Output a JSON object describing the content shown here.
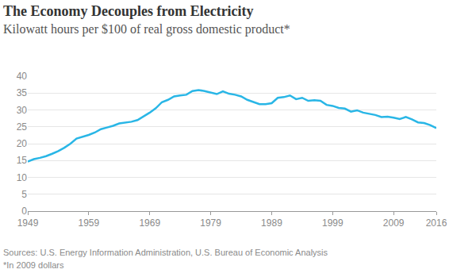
{
  "chart_data": {
    "type": "line",
    "title": "The Economy Decouples from Electricity",
    "subtitle": "Kilowatt hours per $100 of real gross domestic product*",
    "annotations": [
      "Sources: U.S. Energy Information Administration, U.S. Bureau of Economic Analysis",
      "*In 2009 dollars"
    ],
    "x": [
      1949,
      1950,
      1951,
      1952,
      1953,
      1954,
      1955,
      1956,
      1957,
      1958,
      1959,
      1960,
      1961,
      1962,
      1963,
      1964,
      1965,
      1966,
      1967,
      1968,
      1969,
      1970,
      1971,
      1972,
      1973,
      1974,
      1975,
      1976,
      1977,
      1978,
      1979,
      1980,
      1981,
      1982,
      1983,
      1984,
      1985,
      1986,
      1987,
      1988,
      1989,
      1990,
      1991,
      1992,
      1993,
      1994,
      1995,
      1996,
      1997,
      1998,
      1999,
      2000,
      2001,
      2002,
      2003,
      2004,
      2005,
      2006,
      2007,
      2008,
      2009,
      2010,
      2011,
      2012,
      2013,
      2014,
      2015,
      2016
    ],
    "values": [
      14.7,
      15.4,
      15.8,
      16.3,
      17.0,
      17.8,
      18.8,
      20.0,
      21.5,
      22.0,
      22.6,
      23.3,
      24.3,
      24.8,
      25.3,
      26.0,
      26.3,
      26.5,
      27.0,
      28.0,
      29.2,
      30.5,
      32.3,
      33.0,
      34.0,
      34.3,
      34.5,
      35.6,
      35.9,
      35.6,
      35.2,
      34.7,
      35.5,
      34.8,
      34.5,
      34.0,
      33.0,
      32.3,
      31.7,
      31.7,
      32.0,
      33.6,
      33.8,
      34.3,
      33.2,
      33.6,
      32.7,
      32.9,
      32.7,
      31.5,
      31.2,
      30.6,
      30.4,
      29.5,
      29.9,
      29.2,
      28.8,
      28.5,
      27.9,
      28.0,
      27.7,
      27.3,
      27.9,
      27.2,
      26.3,
      26.1,
      25.5,
      24.6
    ],
    "color": "#29b6e6",
    "xlim": [
      1949,
      2016
    ],
    "xticks": [
      1949,
      1959,
      1969,
      1979,
      1989,
      1999,
      2009,
      2016
    ],
    "ylim": [
      0,
      40
    ],
    "yticks": [
      0,
      5,
      10,
      15,
      20,
      25,
      30,
      35,
      40
    ],
    "grid": true
  }
}
